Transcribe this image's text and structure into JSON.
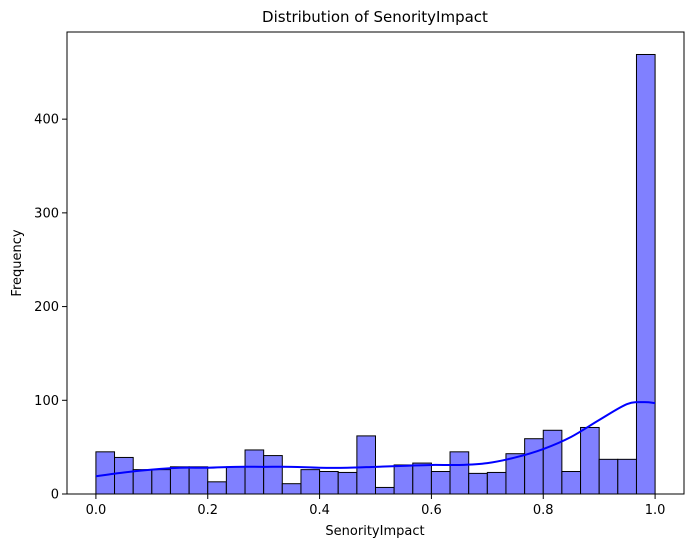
{
  "chart_data": {
    "type": "histogram",
    "title": "Distribution of SenorityImpact",
    "xlabel": "SenorityImpact",
    "ylabel": "Frequency",
    "xlim": [
      -0.0517,
      1.0517
    ],
    "ylim": [
      0,
      493
    ],
    "grid": false,
    "bar_color": "#8080ff",
    "bar_edge_color": "#000000",
    "kde_color": "#0000ff",
    "bin_edges": [
      0.0,
      0.0333,
      0.0667,
      0.1,
      0.1333,
      0.1667,
      0.2,
      0.2333,
      0.2667,
      0.3,
      0.3333,
      0.3667,
      0.4,
      0.4333,
      0.4667,
      0.5,
      0.5333,
      0.5667,
      0.6,
      0.6333,
      0.6667,
      0.7,
      0.7333,
      0.7667,
      0.8,
      0.8333,
      0.8667,
      0.9,
      0.9333,
      0.9667,
      1.0
    ],
    "counts": [
      45,
      39,
      26,
      26,
      29,
      29,
      13,
      29,
      47,
      41,
      11,
      26,
      24,
      23,
      62,
      7,
      31,
      33,
      24,
      45,
      22,
      23,
      43,
      59,
      68,
      24,
      71,
      37,
      37,
      469
    ],
    "kde_x": [
      0.0,
      0.05,
      0.1,
      0.15,
      0.2,
      0.25,
      0.3,
      0.35,
      0.4,
      0.45,
      0.5,
      0.55,
      0.6,
      0.65,
      0.7,
      0.75,
      0.8,
      0.85,
      0.9,
      0.95,
      0.98,
      1.0
    ],
    "kde_y": [
      19,
      23,
      26,
      28,
      28,
      29,
      29,
      29,
      28,
      28,
      29,
      30,
      31,
      31,
      33,
      39,
      48,
      61,
      79,
      96,
      98,
      97
    ],
    "xticks": [
      0.0,
      0.2,
      0.4,
      0.6,
      0.8,
      1.0
    ],
    "xtick_labels": [
      "0.0",
      "0.2",
      "0.4",
      "0.6",
      "0.8",
      "1.0"
    ],
    "yticks": [
      0,
      100,
      200,
      300,
      400
    ],
    "ytick_labels": [
      "0",
      "100",
      "200",
      "300",
      "400"
    ]
  }
}
